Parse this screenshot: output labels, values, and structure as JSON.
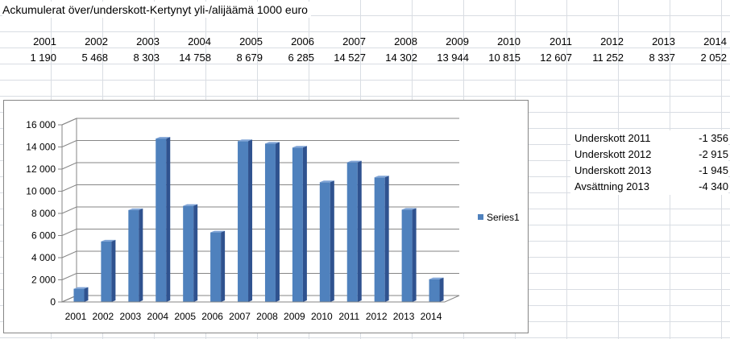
{
  "title": "Ackumulerat över/underskott-Kertynyt yli-/alijäämä 1000 euro",
  "table": {
    "years": [
      "2001",
      "2002",
      "2003",
      "2004",
      "2005",
      "2006",
      "2007",
      "2008",
      "2009",
      "2010",
      "2011",
      "2012",
      "2013",
      "2014"
    ],
    "values": [
      "1 190",
      "5 468",
      "8 303",
      "14 758",
      "8 679",
      "6 285",
      "14 527",
      "14 302",
      "13 944",
      "10 815",
      "12 607",
      "11 252",
      "8 337",
      "2 052"
    ]
  },
  "side_table": [
    {
      "label": "Underskott 2011",
      "value": "-1 356"
    },
    {
      "label": "Underskott 2012",
      "value": "-2 915"
    },
    {
      "label": "Underskott 2013",
      "value": "-1 945"
    },
    {
      "label": "Avsättning 2013",
      "value": "-4 340"
    }
  ],
  "chart_data": {
    "type": "bar",
    "categories": [
      "2001",
      "2002",
      "2003",
      "2004",
      "2005",
      "2006",
      "2007",
      "2008",
      "2009",
      "2010",
      "2011",
      "2012",
      "2013",
      "2014"
    ],
    "series": [
      {
        "name": "Series1",
        "values": [
          1190,
          5468,
          8303,
          14758,
          8679,
          6285,
          14527,
          14302,
          13944,
          10815,
          12607,
          11252,
          8337,
          2052
        ],
        "color": "#4f81bd"
      }
    ],
    "yticks": [
      "0",
      "2 000",
      "4 000",
      "6 000",
      "8 000",
      "10 000",
      "12 000",
      "14 000",
      "16 000"
    ],
    "ylim": [
      0,
      16000
    ],
    "grid": true,
    "legend_position": "right",
    "colors": {
      "bar_front": "#4f81bd",
      "bar_side": "#2f528f",
      "bar_top": "#7ea3d6",
      "grid": "#868686"
    }
  }
}
